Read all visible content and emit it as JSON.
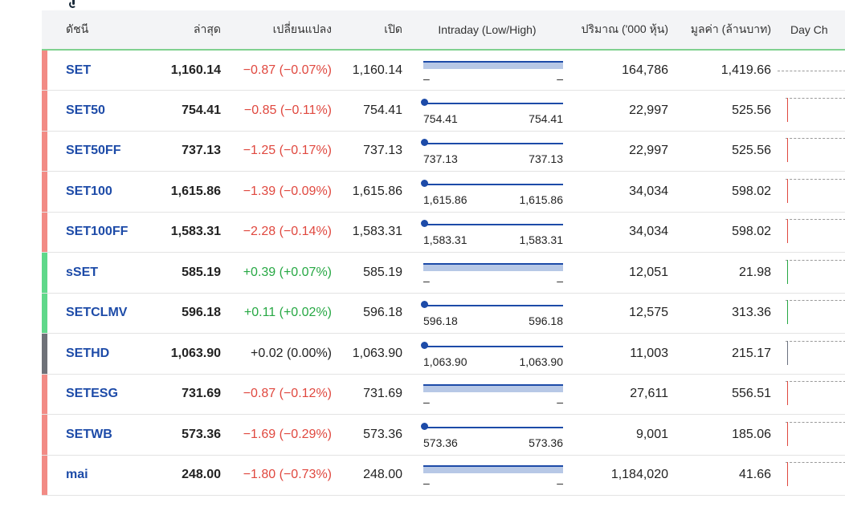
{
  "columns": {
    "name": "ดัชนี",
    "last": "ล่าสุด",
    "change": "เปลี่ยนแปลง",
    "open": "เปิด",
    "intraday": "Intraday (Low/High)",
    "volume": "ปริมาณ ('000 หุ้น)",
    "value": "มูลค่า (ล้านบาท)",
    "daychart": "Day Ch"
  },
  "colors": {
    "down": "#e0483f",
    "up": "#27a844",
    "unchanged": "#6b7280",
    "down_bar": "#f28b85",
    "up_bar": "#5fd88a",
    "unchanged_bar": "#6e7178",
    "link": "#1d4ba8"
  },
  "rows": [
    {
      "name": "SET",
      "last": "1,160.14",
      "change": "−0.87 (−0.07%)",
      "direction": "down",
      "open": "1,160.14",
      "low": "–",
      "high": "–",
      "volume": "164,786",
      "value": "1,419.66"
    },
    {
      "name": "SET50",
      "last": "754.41",
      "change": "−0.85 (−0.11%)",
      "direction": "down",
      "open": "754.41",
      "low": "754.41",
      "high": "754.41",
      "volume": "22,997",
      "value": "525.56"
    },
    {
      "name": "SET50FF",
      "last": "737.13",
      "change": "−1.25 (−0.17%)",
      "direction": "down",
      "open": "737.13",
      "low": "737.13",
      "high": "737.13",
      "volume": "22,997",
      "value": "525.56"
    },
    {
      "name": "SET100",
      "last": "1,615.86",
      "change": "−1.39 (−0.09%)",
      "direction": "down",
      "open": "1,615.86",
      "low": "1,615.86",
      "high": "1,615.86",
      "volume": "34,034",
      "value": "598.02"
    },
    {
      "name": "SET100FF",
      "last": "1,583.31",
      "change": "−2.28 (−0.14%)",
      "direction": "down",
      "open": "1,583.31",
      "low": "1,583.31",
      "high": "1,583.31",
      "volume": "34,034",
      "value": "598.02"
    },
    {
      "name": "sSET",
      "last": "585.19",
      "change": "+0.39 (+0.07%)",
      "direction": "up",
      "open": "585.19",
      "low": "–",
      "high": "–",
      "volume": "12,051",
      "value": "21.98"
    },
    {
      "name": "SETCLMV",
      "last": "596.18",
      "change": "+0.11 (+0.02%)",
      "direction": "up",
      "open": "596.18",
      "low": "596.18",
      "high": "596.18",
      "volume": "12,575",
      "value": "313.36"
    },
    {
      "name": "SETHD",
      "last": "1,063.90",
      "change": "+0.02 (0.00%)",
      "direction": "unchanged",
      "open": "1,063.90",
      "low": "1,063.90",
      "high": "1,063.90",
      "volume": "11,003",
      "value": "215.17"
    },
    {
      "name": "SETESG",
      "last": "731.69",
      "change": "−0.87 (−0.12%)",
      "direction": "down",
      "open": "731.69",
      "low": "–",
      "high": "–",
      "volume": "27,611",
      "value": "556.51"
    },
    {
      "name": "SETWB",
      "last": "573.36",
      "change": "−1.69 (−0.29%)",
      "direction": "down",
      "open": "573.36",
      "low": "573.36",
      "high": "573.36",
      "volume": "9,001",
      "value": "185.06"
    },
    {
      "name": "mai",
      "last": "248.00",
      "change": "−1.80 (−0.73%)",
      "direction": "down",
      "open": "248.00",
      "low": "–",
      "high": "–",
      "volume": "1,184,020",
      "value": "41.66"
    }
  ]
}
